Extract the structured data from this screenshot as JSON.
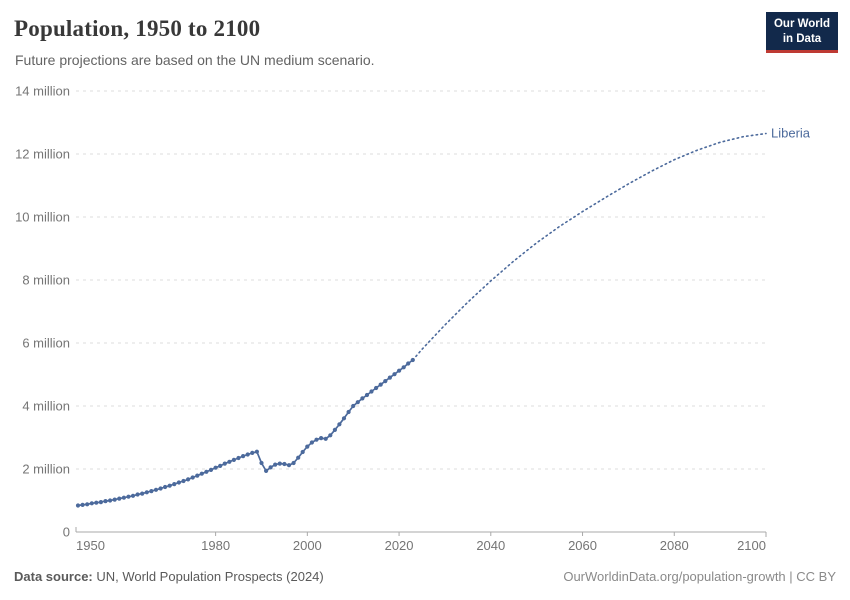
{
  "header": {
    "title": "Population, 1950 to 2100",
    "subtitle": "Future projections are based on the UN medium scenario.",
    "logo": {
      "line1": "Our World",
      "line2": "in Data",
      "bg_color": "#12294b",
      "accent_color": "#be3a33"
    }
  },
  "chart_data": {
    "type": "line",
    "title": "Population, 1950 to 2100",
    "entity": "Liberia",
    "end_label": "Liberia",
    "unit": "million people",
    "xlim": [
      1950,
      2100
    ],
    "ylim_million": [
      0,
      14
    ],
    "grid": "dashed-horizontal",
    "legend_position": "end-of-line",
    "x_ticks": [
      {
        "value": 1950,
        "label": "1950"
      },
      {
        "value": 1980,
        "label": "1980"
      },
      {
        "value": 2000,
        "label": "2000"
      },
      {
        "value": 2020,
        "label": "2020"
      },
      {
        "value": 2040,
        "label": "2040"
      },
      {
        "value": 2060,
        "label": "2060"
      },
      {
        "value": 2080,
        "label": "2080"
      },
      {
        "value": 2100,
        "label": "2100"
      }
    ],
    "y_ticks": [
      {
        "value": 0,
        "label": "0"
      },
      {
        "value": 2,
        "label": "2 million"
      },
      {
        "value": 4,
        "label": "4 million"
      },
      {
        "value": 6,
        "label": "6 million"
      },
      {
        "value": 8,
        "label": "8 million"
      },
      {
        "value": 10,
        "label": "10 million"
      },
      {
        "value": 12,
        "label": "12 million"
      },
      {
        "value": 14,
        "label": "14 million"
      }
    ],
    "colors": {
      "line": "#4c6a9c",
      "grid": "#dcdcdc",
      "axis": "#a9a9a9",
      "tick_text": "#757575"
    },
    "series": [
      {
        "name": "estimates",
        "style": "solid-with-year-markers",
        "points_year_million": [
          [
            1950,
            0.84
          ],
          [
            1951,
            0.86
          ],
          [
            1952,
            0.88
          ],
          [
            1953,
            0.91
          ],
          [
            1954,
            0.93
          ],
          [
            1955,
            0.95
          ],
          [
            1956,
            0.98
          ],
          [
            1957,
            1.0
          ],
          [
            1958,
            1.03
          ],
          [
            1959,
            1.06
          ],
          [
            1960,
            1.09
          ],
          [
            1961,
            1.12
          ],
          [
            1962,
            1.15
          ],
          [
            1963,
            1.19
          ],
          [
            1964,
            1.22
          ],
          [
            1965,
            1.26
          ],
          [
            1966,
            1.3
          ],
          [
            1967,
            1.34
          ],
          [
            1968,
            1.38
          ],
          [
            1969,
            1.43
          ],
          [
            1970,
            1.47
          ],
          [
            1971,
            1.52
          ],
          [
            1972,
            1.57
          ],
          [
            1973,
            1.62
          ],
          [
            1974,
            1.67
          ],
          [
            1975,
            1.73
          ],
          [
            1976,
            1.79
          ],
          [
            1977,
            1.85
          ],
          [
            1978,
            1.91
          ],
          [
            1979,
            1.97
          ],
          [
            1980,
            2.04
          ],
          [
            1981,
            2.1
          ],
          [
            1982,
            2.17
          ],
          [
            1983,
            2.23
          ],
          [
            1984,
            2.29
          ],
          [
            1985,
            2.35
          ],
          [
            1986,
            2.41
          ],
          [
            1987,
            2.46
          ],
          [
            1988,
            2.51
          ],
          [
            1989,
            2.55
          ],
          [
            1990,
            2.19
          ],
          [
            1991,
            1.94
          ],
          [
            1992,
            2.05
          ],
          [
            1993,
            2.14
          ],
          [
            1994,
            2.17
          ],
          [
            1995,
            2.16
          ],
          [
            1996,
            2.12
          ],
          [
            1997,
            2.19
          ],
          [
            1998,
            2.36
          ],
          [
            1999,
            2.54
          ],
          [
            2000,
            2.71
          ],
          [
            2001,
            2.84
          ],
          [
            2002,
            2.93
          ],
          [
            2003,
            2.98
          ],
          [
            2004,
            2.96
          ],
          [
            2005,
            3.07
          ],
          [
            2006,
            3.24
          ],
          [
            2007,
            3.42
          ],
          [
            2008,
            3.61
          ],
          [
            2009,
            3.81
          ],
          [
            2010,
            4.0
          ],
          [
            2011,
            4.12
          ],
          [
            2012,
            4.24
          ],
          [
            2013,
            4.35
          ],
          [
            2014,
            4.46
          ],
          [
            2015,
            4.57
          ],
          [
            2016,
            4.68
          ],
          [
            2017,
            4.79
          ],
          [
            2018,
            4.9
          ],
          [
            2019,
            5.01
          ],
          [
            2020,
            5.12
          ],
          [
            2021,
            5.23
          ],
          [
            2022,
            5.35
          ],
          [
            2023,
            5.46
          ]
        ]
      },
      {
        "name": "projection (UN medium scenario)",
        "style": "dotted",
        "points_year_million": [
          [
            2023,
            5.46
          ],
          [
            2025,
            5.8
          ],
          [
            2030,
            6.57
          ],
          [
            2035,
            7.3
          ],
          [
            2040,
            7.97
          ],
          [
            2045,
            8.6
          ],
          [
            2050,
            9.18
          ],
          [
            2055,
            9.7
          ],
          [
            2060,
            10.17
          ],
          [
            2065,
            10.62
          ],
          [
            2070,
            11.05
          ],
          [
            2075,
            11.45
          ],
          [
            2080,
            11.82
          ],
          [
            2085,
            12.12
          ],
          [
            2090,
            12.37
          ],
          [
            2095,
            12.55
          ],
          [
            2100,
            12.65
          ]
        ]
      }
    ]
  },
  "footer": {
    "source_label": "Data source:",
    "source_text": " UN, World Population Prospects (2024)",
    "link_text": "OurWorldinData.org/population-growth | CC BY"
  }
}
